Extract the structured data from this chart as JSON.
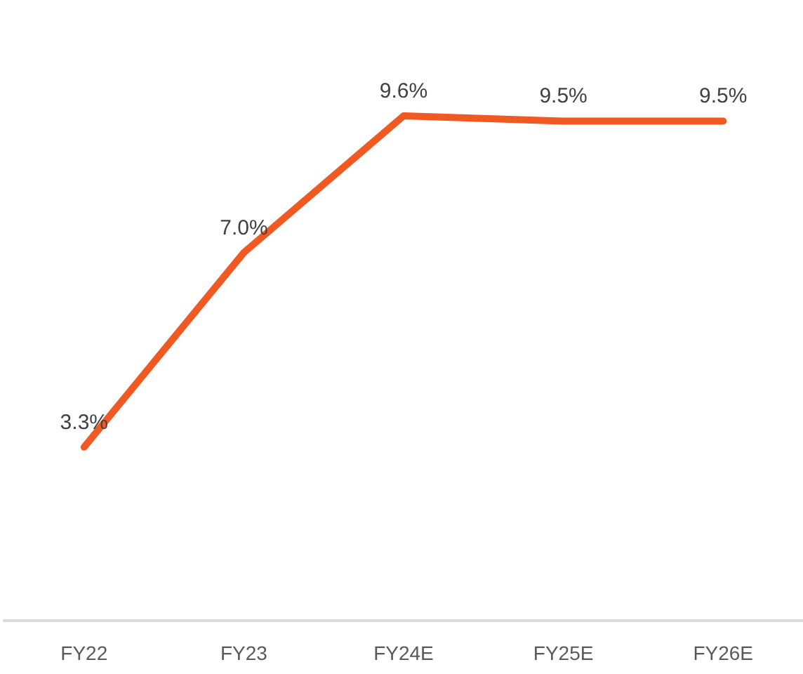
{
  "chart_data": {
    "type": "line",
    "categories": [
      "FY22",
      "FY23",
      "FY24E",
      "FY25E",
      "FY26E"
    ],
    "series": [
      {
        "color": "#f05a22",
        "values": [
          3.3,
          7.0,
          9.6,
          9.5,
          9.5
        ],
        "value_labels": [
          "3.3%",
          "7.0%",
          "9.6%",
          "9.5%",
          "9.5%"
        ]
      }
    ],
    "tick_labels": "x",
    "grid": false,
    "marker": "none",
    "line_style": "solid"
  }
}
